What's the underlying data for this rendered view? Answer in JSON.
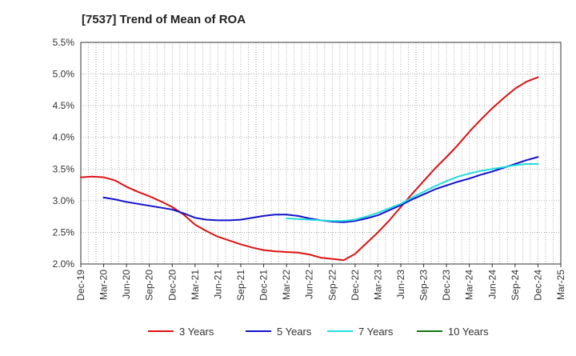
{
  "chart_data": {
    "type": "line",
    "title": "[7537]  Trend of Mean of ROA",
    "xlabel": "",
    "ylabel": "",
    "ylim": [
      2.0,
      5.5
    ],
    "grid": true,
    "legend_position": "bottom",
    "yticks": [
      2.0,
      2.5,
      3.0,
      3.5,
      4.0,
      4.5,
      5.0,
      5.5
    ],
    "yticklabels": [
      "2.0%",
      "2.5%",
      "3.0%",
      "3.5%",
      "4.0%",
      "4.5%",
      "5.0%",
      "5.5%"
    ],
    "xticklabels": [
      "Dec-19",
      "Mar-20",
      "Jun-20",
      "Sep-20",
      "Dec-20",
      "Mar-21",
      "Jun-21",
      "Sep-21",
      "Dec-21",
      "Mar-22",
      "Jun-22",
      "Sep-22",
      "Dec-22",
      "Mar-23",
      "Jun-23",
      "Sep-23",
      "Dec-23",
      "Mar-24",
      "Jun-24",
      "Sep-24",
      "Dec-24",
      "Mar-25"
    ],
    "series": [
      {
        "name": "3 Years",
        "color": "#dd1111",
        "points": [
          [
            0,
            3.37
          ],
          [
            0.5,
            3.38
          ],
          [
            1,
            3.37
          ],
          [
            1.5,
            3.32
          ],
          [
            2,
            3.22
          ],
          [
            2.5,
            3.14
          ],
          [
            3,
            3.07
          ],
          [
            3.5,
            2.99
          ],
          [
            4,
            2.9
          ],
          [
            4.5,
            2.78
          ],
          [
            5,
            2.62
          ],
          [
            5.5,
            2.52
          ],
          [
            6,
            2.43
          ],
          [
            6.5,
            2.37
          ],
          [
            7,
            2.31
          ],
          [
            7.5,
            2.26
          ],
          [
            8,
            2.22
          ],
          [
            8.5,
            2.2
          ],
          [
            9,
            2.19
          ],
          [
            9.5,
            2.18
          ],
          [
            10,
            2.15
          ],
          [
            10.5,
            2.1
          ],
          [
            11,
            2.08
          ],
          [
            11.5,
            2.06
          ],
          [
            12,
            2.16
          ],
          [
            12.5,
            2.33
          ],
          [
            13,
            2.5
          ],
          [
            13.5,
            2.69
          ],
          [
            14,
            2.9
          ],
          [
            14.5,
            3.11
          ],
          [
            15,
            3.31
          ],
          [
            15.5,
            3.51
          ],
          [
            16,
            3.69
          ],
          [
            16.5,
            3.88
          ],
          [
            17,
            4.09
          ],
          [
            17.5,
            4.28
          ],
          [
            18,
            4.46
          ],
          [
            18.5,
            4.62
          ],
          [
            19,
            4.77
          ],
          [
            19.5,
            4.88
          ],
          [
            20,
            4.95
          ]
        ]
      },
      {
        "name": "5 Years",
        "color": "#1111cc",
        "points": [
          [
            1,
            3.05
          ],
          [
            1.5,
            3.02
          ],
          [
            2,
            2.98
          ],
          [
            2.5,
            2.95
          ],
          [
            3,
            2.92
          ],
          [
            3.5,
            2.89
          ],
          [
            4,
            2.86
          ],
          [
            4.5,
            2.8
          ],
          [
            5,
            2.73
          ],
          [
            5.5,
            2.7
          ],
          [
            6,
            2.69
          ],
          [
            6.5,
            2.69
          ],
          [
            7,
            2.7
          ],
          [
            7.5,
            2.73
          ],
          [
            8,
            2.76
          ],
          [
            8.5,
            2.78
          ],
          [
            9,
            2.78
          ],
          [
            9.5,
            2.76
          ],
          [
            10,
            2.72
          ],
          [
            10.5,
            2.69
          ],
          [
            11,
            2.67
          ],
          [
            11.5,
            2.66
          ],
          [
            12,
            2.68
          ],
          [
            12.5,
            2.72
          ],
          [
            13,
            2.77
          ],
          [
            13.5,
            2.85
          ],
          [
            14,
            2.93
          ],
          [
            14.5,
            3.02
          ],
          [
            15,
            3.1
          ],
          [
            15.5,
            3.18
          ],
          [
            16,
            3.24
          ],
          [
            16.5,
            3.3
          ],
          [
            17,
            3.35
          ],
          [
            17.5,
            3.41
          ],
          [
            18,
            3.46
          ],
          [
            18.5,
            3.52
          ],
          [
            19,
            3.58
          ],
          [
            19.5,
            3.64
          ],
          [
            20,
            3.69
          ]
        ]
      },
      {
        "name": "7 Years",
        "color": "#22dddd",
        "points": [
          [
            9,
            2.72
          ],
          [
            9.5,
            2.71
          ],
          [
            10,
            2.7
          ],
          [
            10.5,
            2.69
          ],
          [
            11,
            2.68
          ],
          [
            11.5,
            2.68
          ],
          [
            12,
            2.7
          ],
          [
            12.5,
            2.75
          ],
          [
            13,
            2.81
          ],
          [
            13.5,
            2.88
          ],
          [
            14,
            2.95
          ],
          [
            14.5,
            3.05
          ],
          [
            15,
            3.14
          ],
          [
            15.5,
            3.23
          ],
          [
            16,
            3.31
          ],
          [
            16.5,
            3.38
          ],
          [
            17,
            3.43
          ],
          [
            17.5,
            3.47
          ],
          [
            18,
            3.5
          ],
          [
            18.5,
            3.53
          ],
          [
            19,
            3.56
          ],
          [
            19.5,
            3.58
          ],
          [
            20,
            3.58
          ]
        ]
      },
      {
        "name": "10 Years",
        "color": "#117711",
        "points": []
      }
    ]
  }
}
